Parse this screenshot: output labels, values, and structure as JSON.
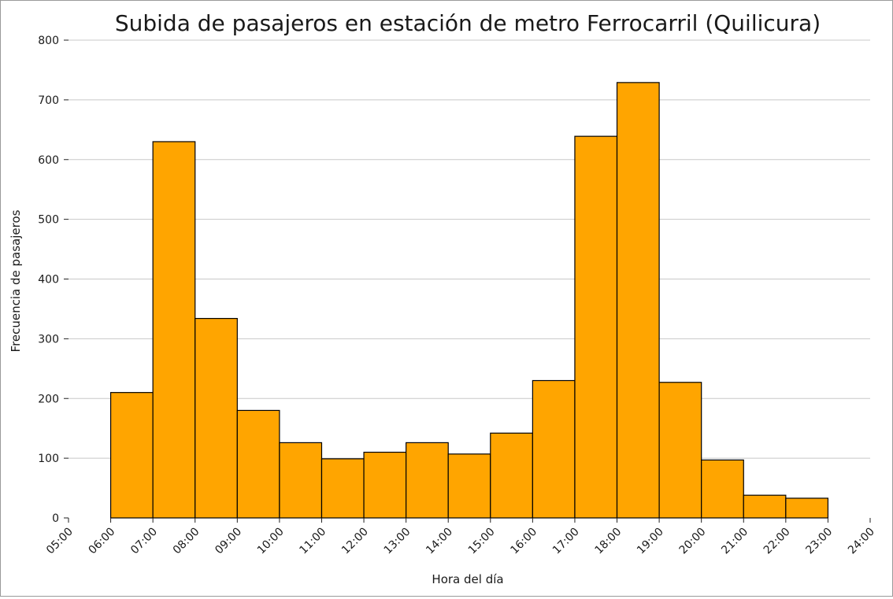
{
  "chart_data": {
    "type": "bar",
    "title": "Subida de pasajeros en estación de metro Ferrocarril (Quilicura)",
    "xlabel": "Hora del día",
    "ylabel": "Frecuencia de pasajeros",
    "ylim": [
      0,
      800
    ],
    "yticks": [
      0,
      100,
      200,
      300,
      400,
      500,
      600,
      700,
      800
    ],
    "xlim": [
      5,
      24
    ],
    "xticks": [
      "05:00",
      "06:00",
      "07:00",
      "08:00",
      "09:00",
      "10:00",
      "11:00",
      "12:00",
      "13:00",
      "14:00",
      "15:00",
      "16:00",
      "17:00",
      "18:00",
      "19:00",
      "20:00",
      "21:00",
      "22:00",
      "23:00",
      "24:00"
    ],
    "bins": [
      {
        "start": 6,
        "end": 7,
        "value": 210
      },
      {
        "start": 7,
        "end": 8,
        "value": 630
      },
      {
        "start": 8,
        "end": 9,
        "value": 334
      },
      {
        "start": 9,
        "end": 10,
        "value": 180
      },
      {
        "start": 10,
        "end": 11,
        "value": 126
      },
      {
        "start": 11,
        "end": 12,
        "value": 99
      },
      {
        "start": 12,
        "end": 13,
        "value": 110
      },
      {
        "start": 13,
        "end": 14,
        "value": 126
      },
      {
        "start": 14,
        "end": 15,
        "value": 107
      },
      {
        "start": 15,
        "end": 16,
        "value": 142
      },
      {
        "start": 16,
        "end": 17,
        "value": 230
      },
      {
        "start": 17,
        "end": 18,
        "value": 639
      },
      {
        "start": 18,
        "end": 19,
        "value": 729
      },
      {
        "start": 19,
        "end": 20,
        "value": 227
      },
      {
        "start": 20,
        "end": 21,
        "value": 97
      },
      {
        "start": 21,
        "end": 22,
        "value": 38
      },
      {
        "start": 22,
        "end": 23,
        "value": 33
      }
    ],
    "bar_color": "#FFA500",
    "edge_color": "#000000",
    "grid": "horizontal"
  }
}
